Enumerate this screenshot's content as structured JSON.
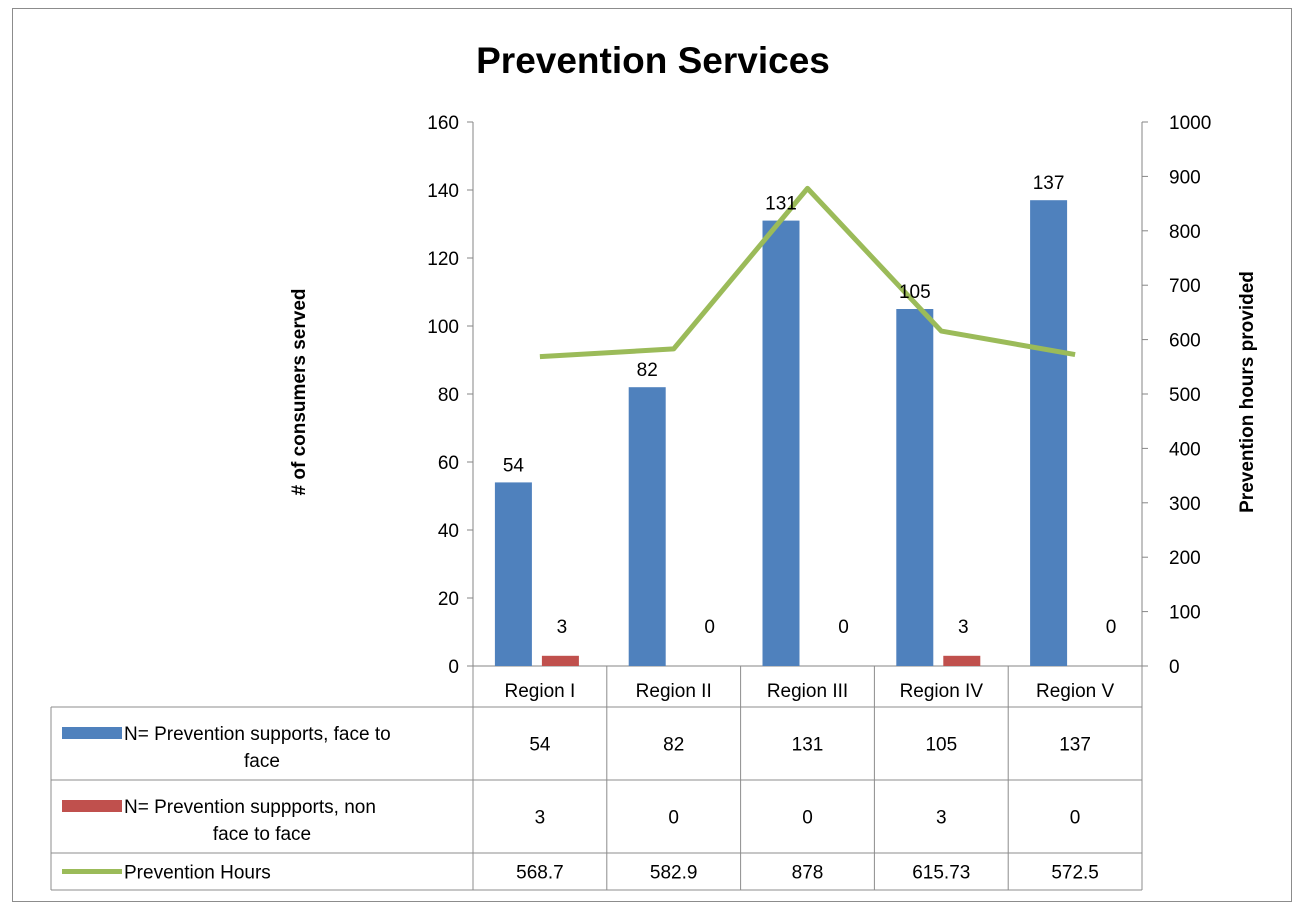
{
  "chart_data": {
    "type": "bar",
    "title": "Prevention Services",
    "categories": [
      "Region I",
      "Region II",
      "Region III",
      "Region IV",
      "Region V"
    ],
    "series": [
      {
        "name": "N= Prevention supports, face to face",
        "type": "bar",
        "axis": "left",
        "color": "#4F81BD",
        "values": [
          54,
          82,
          131,
          105,
          137
        ]
      },
      {
        "name": "N= Prevention suppports, non face to face",
        "type": "bar",
        "axis": "left",
        "color": "#C0504D",
        "values": [
          3,
          0,
          0,
          3,
          0
        ]
      },
      {
        "name": "Prevention Hours",
        "type": "line",
        "axis": "right",
        "color": "#9BBB59",
        "values": [
          568.7,
          582.9,
          878,
          615.73,
          572.5
        ]
      }
    ],
    "series_label_lines": [
      [
        "N= Prevention supports, face to",
        "face"
      ],
      [
        "N= Prevention suppports, non",
        "face to face"
      ],
      [
        "Prevention Hours"
      ]
    ],
    "table_values": [
      [
        "54",
        "82",
        "131",
        "105",
        "137"
      ],
      [
        "3",
        "0",
        "0",
        "3",
        "0"
      ],
      [
        "568.7",
        "582.9",
        "878",
        "615.73",
        "572.5"
      ]
    ],
    "ylabel": "# of consumers served",
    "y2label": "Prevention hours provided",
    "ylim": [
      0,
      160
    ],
    "y2lim": [
      0,
      1000
    ],
    "yticks": [
      "0",
      "20",
      "40",
      "60",
      "80",
      "100",
      "120",
      "140",
      "160"
    ],
    "y2ticks": [
      "0",
      "100",
      "200",
      "300",
      "400",
      "500",
      "600",
      "700",
      "800",
      "900",
      "1000"
    ],
    "data_labels_on": [
      "N= Prevention supports, face to face",
      "N= Prevention suppports, non face to face"
    ],
    "grid": false,
    "legend": "data-table"
  }
}
